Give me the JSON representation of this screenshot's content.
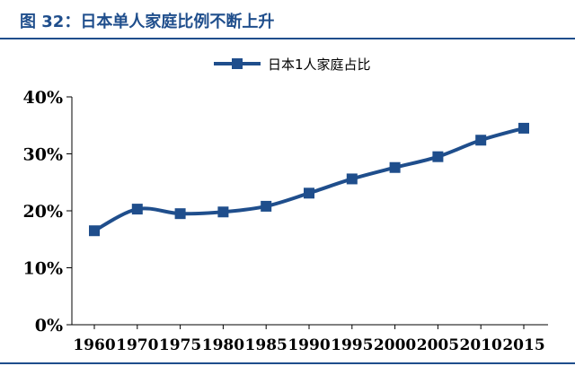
{
  "header": {
    "title": "图 32：日本单人家庭比例不断上升"
  },
  "colors": {
    "accent": "#1f4e8c",
    "series": "#1f4e8c"
  },
  "chart_data": {
    "type": "line",
    "x": [
      "1960",
      "1970",
      "1975",
      "1980",
      "1985",
      "1990",
      "1995",
      "2000",
      "2005",
      "2010",
      "2015"
    ],
    "series": [
      {
        "name": "日本1人家庭占比",
        "values": [
          16.5,
          20.3,
          19.5,
          19.8,
          20.8,
          23.1,
          25.6,
          27.6,
          29.5,
          32.4,
          34.5
        ]
      }
    ],
    "yticks": [
      "0%",
      "10%",
      "20%",
      "30%",
      "40%"
    ],
    "ylim": [
      0,
      40
    ],
    "legend_position": "top-center",
    "grid": false,
    "title": "",
    "xlabel": "",
    "ylabel": ""
  }
}
